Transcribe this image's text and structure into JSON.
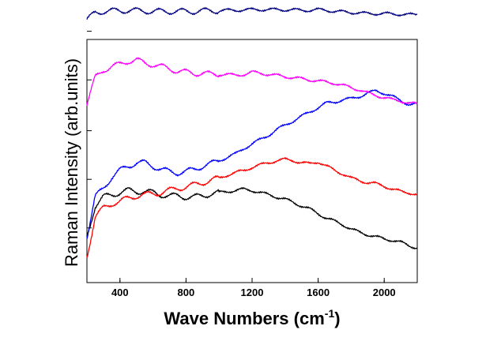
{
  "chart_data": {
    "type": "line",
    "xlabel": "Wave Numbers (cm",
    "xlabel_sup": "-1",
    "xlabel_tail": ")",
    "ylabel": "Raman Intensity (arb.units)",
    "xlim": [
      200,
      2200
    ],
    "ylim": [
      0,
      10
    ],
    "x_ticks": [
      400,
      800,
      1200,
      1600,
      2000
    ],
    "y_ticks_labeled": false,
    "grid": false,
    "legend": "none",
    "series": [
      {
        "color": "#000000",
        "points": [
          [
            200,
            1.5
          ],
          [
            250,
            2.9
          ],
          [
            300,
            3.3
          ],
          [
            350,
            3.4
          ],
          [
            400,
            3.5
          ],
          [
            450,
            3.6
          ],
          [
            500,
            3.55
          ],
          [
            550,
            3.55
          ],
          [
            600,
            3.5
          ],
          [
            650,
            3.4
          ],
          [
            700,
            3.35
          ],
          [
            750,
            3.35
          ],
          [
            800,
            3.3
          ],
          [
            850,
            3.3
          ],
          [
            900,
            3.35
          ],
          [
            950,
            3.45
          ],
          [
            1000,
            3.5
          ],
          [
            1050,
            3.55
          ],
          [
            1100,
            3.6
          ],
          [
            1150,
            3.65
          ],
          [
            1200,
            3.6
          ],
          [
            1250,
            3.5
          ],
          [
            1300,
            3.4
          ],
          [
            1350,
            3.3
          ],
          [
            1400,
            3.2
          ],
          [
            1450,
            3.05
          ],
          [
            1500,
            2.9
          ],
          [
            1550,
            2.75
          ],
          [
            1600,
            2.55
          ],
          [
            1650,
            2.35
          ],
          [
            1700,
            2.2
          ],
          [
            1750,
            2.05
          ],
          [
            1800,
            1.85
          ],
          [
            1850,
            1.7
          ],
          [
            1900,
            1.6
          ],
          [
            1950,
            1.5
          ],
          [
            2000,
            1.4
          ],
          [
            2050,
            1.35
          ],
          [
            2100,
            1.25
          ],
          [
            2150,
            1.1
          ],
          [
            2200,
            1.0
          ]
        ]
      },
      {
        "color": "#ff0000",
        "points": [
          [
            200,
            0.6
          ],
          [
            250,
            2.4
          ],
          [
            300,
            2.8
          ],
          [
            350,
            3.0
          ],
          [
            400,
            3.1
          ],
          [
            450,
            3.25
          ],
          [
            500,
            3.35
          ],
          [
            550,
            3.4
          ],
          [
            600,
            3.45
          ],
          [
            650,
            3.5
          ],
          [
            700,
            3.6
          ],
          [
            750,
            3.7
          ],
          [
            800,
            3.75
          ],
          [
            850,
            3.85
          ],
          [
            900,
            3.95
          ],
          [
            950,
            4.05
          ],
          [
            1000,
            4.15
          ],
          [
            1050,
            4.3
          ],
          [
            1100,
            4.4
          ],
          [
            1150,
            4.5
          ],
          [
            1200,
            4.65
          ],
          [
            1250,
            4.75
          ],
          [
            1300,
            4.85
          ],
          [
            1350,
            4.95
          ],
          [
            1400,
            5.0
          ],
          [
            1450,
            4.95
          ],
          [
            1500,
            4.85
          ],
          [
            1550,
            4.8
          ],
          [
            1600,
            4.9
          ],
          [
            1650,
            4.7
          ],
          [
            1700,
            4.5
          ],
          [
            1750,
            4.35
          ],
          [
            1800,
            4.15
          ],
          [
            1850,
            4.05
          ],
          [
            1900,
            3.95
          ],
          [
            1950,
            3.9
          ],
          [
            2000,
            3.8
          ],
          [
            2050,
            3.65
          ],
          [
            2100,
            3.55
          ],
          [
            2150,
            3.5
          ],
          [
            2200,
            3.4
          ]
        ]
      },
      {
        "color": "#0000ff",
        "points": [
          [
            200,
            1.5
          ],
          [
            250,
            3.3
          ],
          [
            300,
            3.7
          ],
          [
            350,
            4.2
          ],
          [
            400,
            4.5
          ],
          [
            450,
            4.7
          ],
          [
            500,
            4.85
          ],
          [
            550,
            4.85
          ],
          [
            600,
            4.7
          ],
          [
            650,
            4.55
          ],
          [
            700,
            4.45
          ],
          [
            750,
            4.4
          ],
          [
            800,
            4.45
          ],
          [
            850,
            4.55
          ],
          [
            900,
            4.7
          ],
          [
            950,
            4.8
          ],
          [
            1000,
            4.95
          ],
          [
            1050,
            5.1
          ],
          [
            1100,
            5.25
          ],
          [
            1150,
            5.5
          ],
          [
            1200,
            5.7
          ],
          [
            1250,
            5.9
          ],
          [
            1300,
            6.1
          ],
          [
            1350,
            6.35
          ],
          [
            1400,
            6.55
          ],
          [
            1450,
            6.75
          ],
          [
            1500,
            6.95
          ],
          [
            1550,
            7.15
          ],
          [
            1600,
            7.35
          ],
          [
            1650,
            7.55
          ],
          [
            1700,
            7.6
          ],
          [
            1750,
            7.7
          ],
          [
            1800,
            7.75
          ],
          [
            1850,
            7.85
          ],
          [
            1900,
            8.0
          ],
          [
            1950,
            8.1
          ],
          [
            2000,
            8.0
          ],
          [
            2050,
            7.85
          ],
          [
            2100,
            7.65
          ],
          [
            2150,
            7.5
          ],
          [
            2200,
            7.5
          ]
        ]
      },
      {
        "color": "#ff00ff",
        "points": [
          [
            200,
            7.5
          ],
          [
            250,
            8.7
          ],
          [
            300,
            9.05
          ],
          [
            350,
            9.2
          ],
          [
            400,
            9.3
          ],
          [
            450,
            9.45
          ],
          [
            500,
            9.5
          ],
          [
            550,
            9.35
          ],
          [
            600,
            9.3
          ],
          [
            650,
            9.2
          ],
          [
            700,
            9.1
          ],
          [
            750,
            9.0
          ],
          [
            800,
            8.95
          ],
          [
            850,
            8.9
          ],
          [
            900,
            8.9
          ],
          [
            950,
            8.85
          ],
          [
            1000,
            8.85
          ],
          [
            1050,
            8.85
          ],
          [
            1100,
            8.8
          ],
          [
            1150,
            8.85
          ],
          [
            1200,
            8.95
          ],
          [
            1250,
            8.9
          ],
          [
            1300,
            8.85
          ],
          [
            1350,
            8.8
          ],
          [
            1400,
            8.75
          ],
          [
            1450,
            8.7
          ],
          [
            1500,
            8.65
          ],
          [
            1550,
            8.6
          ],
          [
            1600,
            8.55
          ],
          [
            1650,
            8.5
          ],
          [
            1700,
            8.45
          ],
          [
            1750,
            8.35
          ],
          [
            1800,
            8.25
          ],
          [
            1850,
            8.15
          ],
          [
            1900,
            8.0
          ],
          [
            1950,
            7.9
          ],
          [
            2000,
            7.8
          ],
          [
            2050,
            7.7
          ],
          [
            2100,
            7.65
          ],
          [
            2150,
            7.55
          ],
          [
            2200,
            7.5
          ]
        ]
      },
      {
        "color": "#000080",
        "points": [
          [
            200,
            11.3
          ],
          [
            250,
            11.65
          ],
          [
            300,
            11.7
          ],
          [
            350,
            11.72
          ],
          [
            400,
            11.73
          ],
          [
            450,
            11.75
          ],
          [
            500,
            11.73
          ],
          [
            550,
            11.72
          ],
          [
            600,
            11.7
          ],
          [
            650,
            11.7
          ],
          [
            700,
            11.7
          ],
          [
            750,
            11.7
          ],
          [
            800,
            11.7
          ],
          [
            850,
            11.7
          ],
          [
            900,
            11.72
          ],
          [
            950,
            11.73
          ],
          [
            1000,
            11.73
          ],
          [
            1050,
            11.75
          ],
          [
            1100,
            11.75
          ],
          [
            1150,
            11.77
          ],
          [
            1200,
            11.78
          ],
          [
            1250,
            11.78
          ],
          [
            1300,
            11.78
          ],
          [
            1350,
            11.78
          ],
          [
            1400,
            11.77
          ],
          [
            1450,
            11.77
          ],
          [
            1500,
            11.75
          ],
          [
            1550,
            11.75
          ],
          [
            1600,
            11.78
          ],
          [
            1650,
            11.75
          ],
          [
            1700,
            11.7
          ],
          [
            1750,
            11.68
          ],
          [
            1800,
            11.65
          ],
          [
            1850,
            11.63
          ],
          [
            1900,
            11.6
          ],
          [
            1950,
            11.6
          ],
          [
            2000,
            11.6
          ],
          [
            2050,
            11.58
          ],
          [
            2100,
            11.57
          ],
          [
            2150,
            11.55
          ],
          [
            2200,
            11.55
          ]
        ]
      }
    ]
  }
}
